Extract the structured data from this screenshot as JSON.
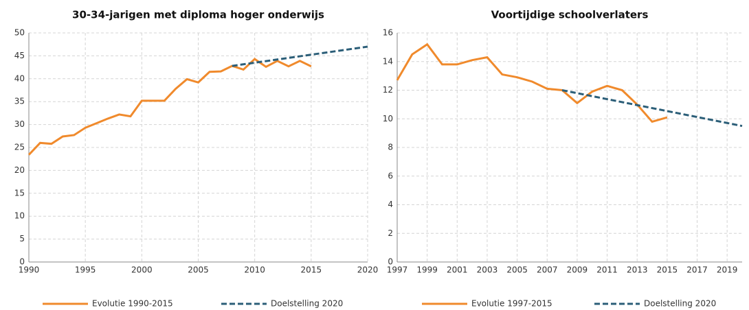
{
  "chart_data": [
    {
      "type": "line",
      "title": "30-34-jarigen met diploma hoger onderwijs",
      "xlim": [
        1990,
        2020
      ],
      "xticks": [
        1990,
        1995,
        2000,
        2005,
        2010,
        2015,
        2020
      ],
      "ylim": [
        0,
        50
      ],
      "yticks": [
        0,
        5,
        10,
        15,
        20,
        25,
        30,
        35,
        40,
        45,
        50
      ],
      "grid": true,
      "series": [
        {
          "name": "Evolutie 1990-2015",
          "color": "#f08a2c",
          "dashed": false,
          "x": [
            1990,
            1991,
            1992,
            1993,
            1994,
            1995,
            1996,
            1997,
            1998,
            1999,
            2000,
            2001,
            2002,
            2003,
            2004,
            2005,
            2006,
            2007,
            2008,
            2009,
            2010,
            2011,
            2012,
            2013,
            2014,
            2015
          ],
          "values": [
            23.4,
            26.0,
            25.8,
            27.4,
            27.7,
            29.3,
            30.3,
            31.3,
            32.2,
            31.8,
            35.2,
            35.2,
            35.2,
            37.8,
            39.9,
            39.2,
            41.5,
            41.6,
            42.8,
            42.0,
            44.3,
            42.6,
            43.9,
            42.7,
            43.9,
            42.7
          ]
        },
        {
          "name": "Doelstelling 2020",
          "color": "#2b5e78",
          "dashed": true,
          "x": [
            2008,
            2020
          ],
          "values": [
            42.8,
            47
          ]
        }
      ]
    },
    {
      "type": "line",
      "title": "Voortijdige schoolverlaters",
      "xlim": [
        1997,
        2020
      ],
      "xticks": [
        1997,
        1999,
        2001,
        2003,
        2005,
        2007,
        2009,
        2011,
        2013,
        2015,
        2017,
        2019
      ],
      "ylim": [
        0,
        16
      ],
      "yticks": [
        0,
        2,
        4,
        6,
        8,
        10,
        12,
        14,
        16
      ],
      "grid": true,
      "series": [
        {
          "name": "Evolutie 1997-2015",
          "color": "#f08a2c",
          "dashed": false,
          "x": [
            1997,
            1998,
            1999,
            2000,
            2001,
            2002,
            2003,
            2004,
            2005,
            2006,
            2007,
            2008,
            2009,
            2010,
            2011,
            2012,
            2013,
            2014,
            2015
          ],
          "values": [
            12.7,
            14.5,
            15.2,
            13.8,
            13.8,
            14.1,
            14.3,
            13.1,
            12.9,
            12.6,
            12.1,
            12.0,
            11.1,
            11.9,
            12.3,
            12.0,
            11.0,
            9.8,
            10.1
          ]
        },
        {
          "name": "Doelstelling 2020",
          "color": "#2b5e78",
          "dashed": true,
          "x": [
            2008,
            2020
          ],
          "values": [
            12.0,
            9.5
          ]
        }
      ]
    }
  ]
}
